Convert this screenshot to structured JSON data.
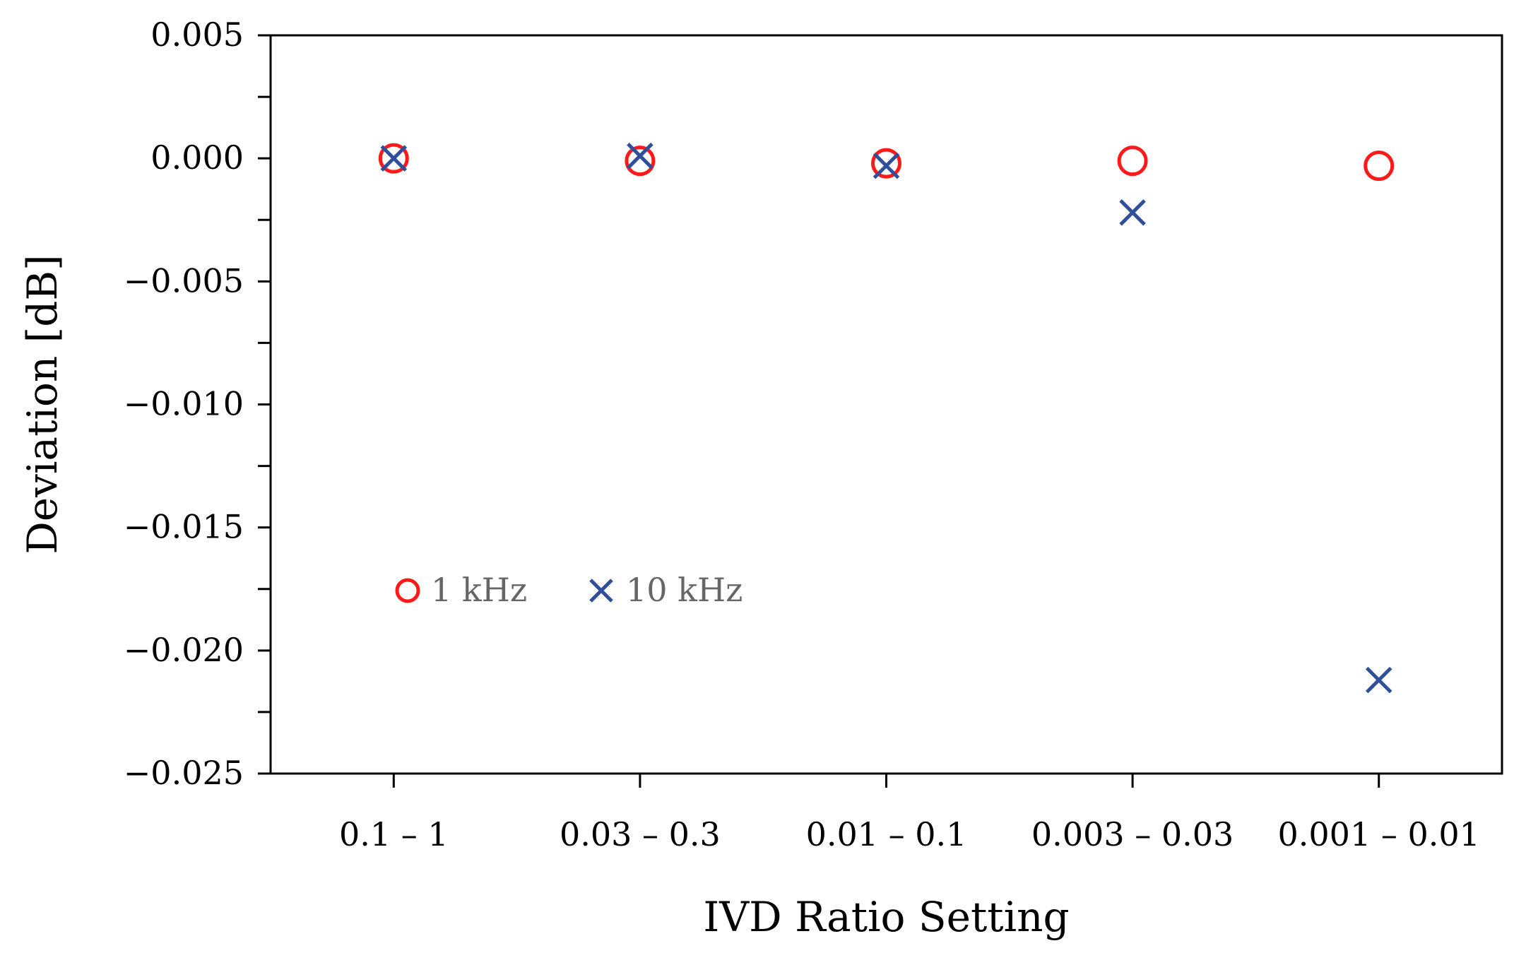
{
  "chart_data": {
    "type": "scatter",
    "categories": [
      "0.1 – 1",
      "0.03 – 0.3",
      "0.01 – 0.1",
      "0.003 – 0.03",
      "0.001 –  0.01"
    ],
    "series": [
      {
        "name": "1 kHz",
        "marker": "circle",
        "color": "#ff1a1a",
        "values": [
          0.0,
          -0.0001,
          -0.0002,
          -0.0001,
          -0.0003
        ]
      },
      {
        "name": "10 kHz",
        "marker": "x",
        "color": "#2f4f9a",
        "values": [
          0.0,
          0.0001,
          -0.0003,
          -0.0022,
          -0.0212
        ]
      }
    ],
    "xlabel": "IVD Ratio Setting",
    "ylabel": "Deviation  [dB]",
    "ylim": [
      -0.025,
      0.005
    ],
    "yticks": [
      0.005,
      0.0,
      -0.005,
      -0.01,
      -0.015,
      -0.02,
      -0.025
    ],
    "ytick_labels": [
      "0.005",
      "0.000",
      "−0.005",
      "−0.010",
      "−0.015",
      "−0.020",
      "−0.025"
    ],
    "grid": false,
    "legend_position": "inside-lower-left",
    "legend_text_color": "#666666"
  }
}
